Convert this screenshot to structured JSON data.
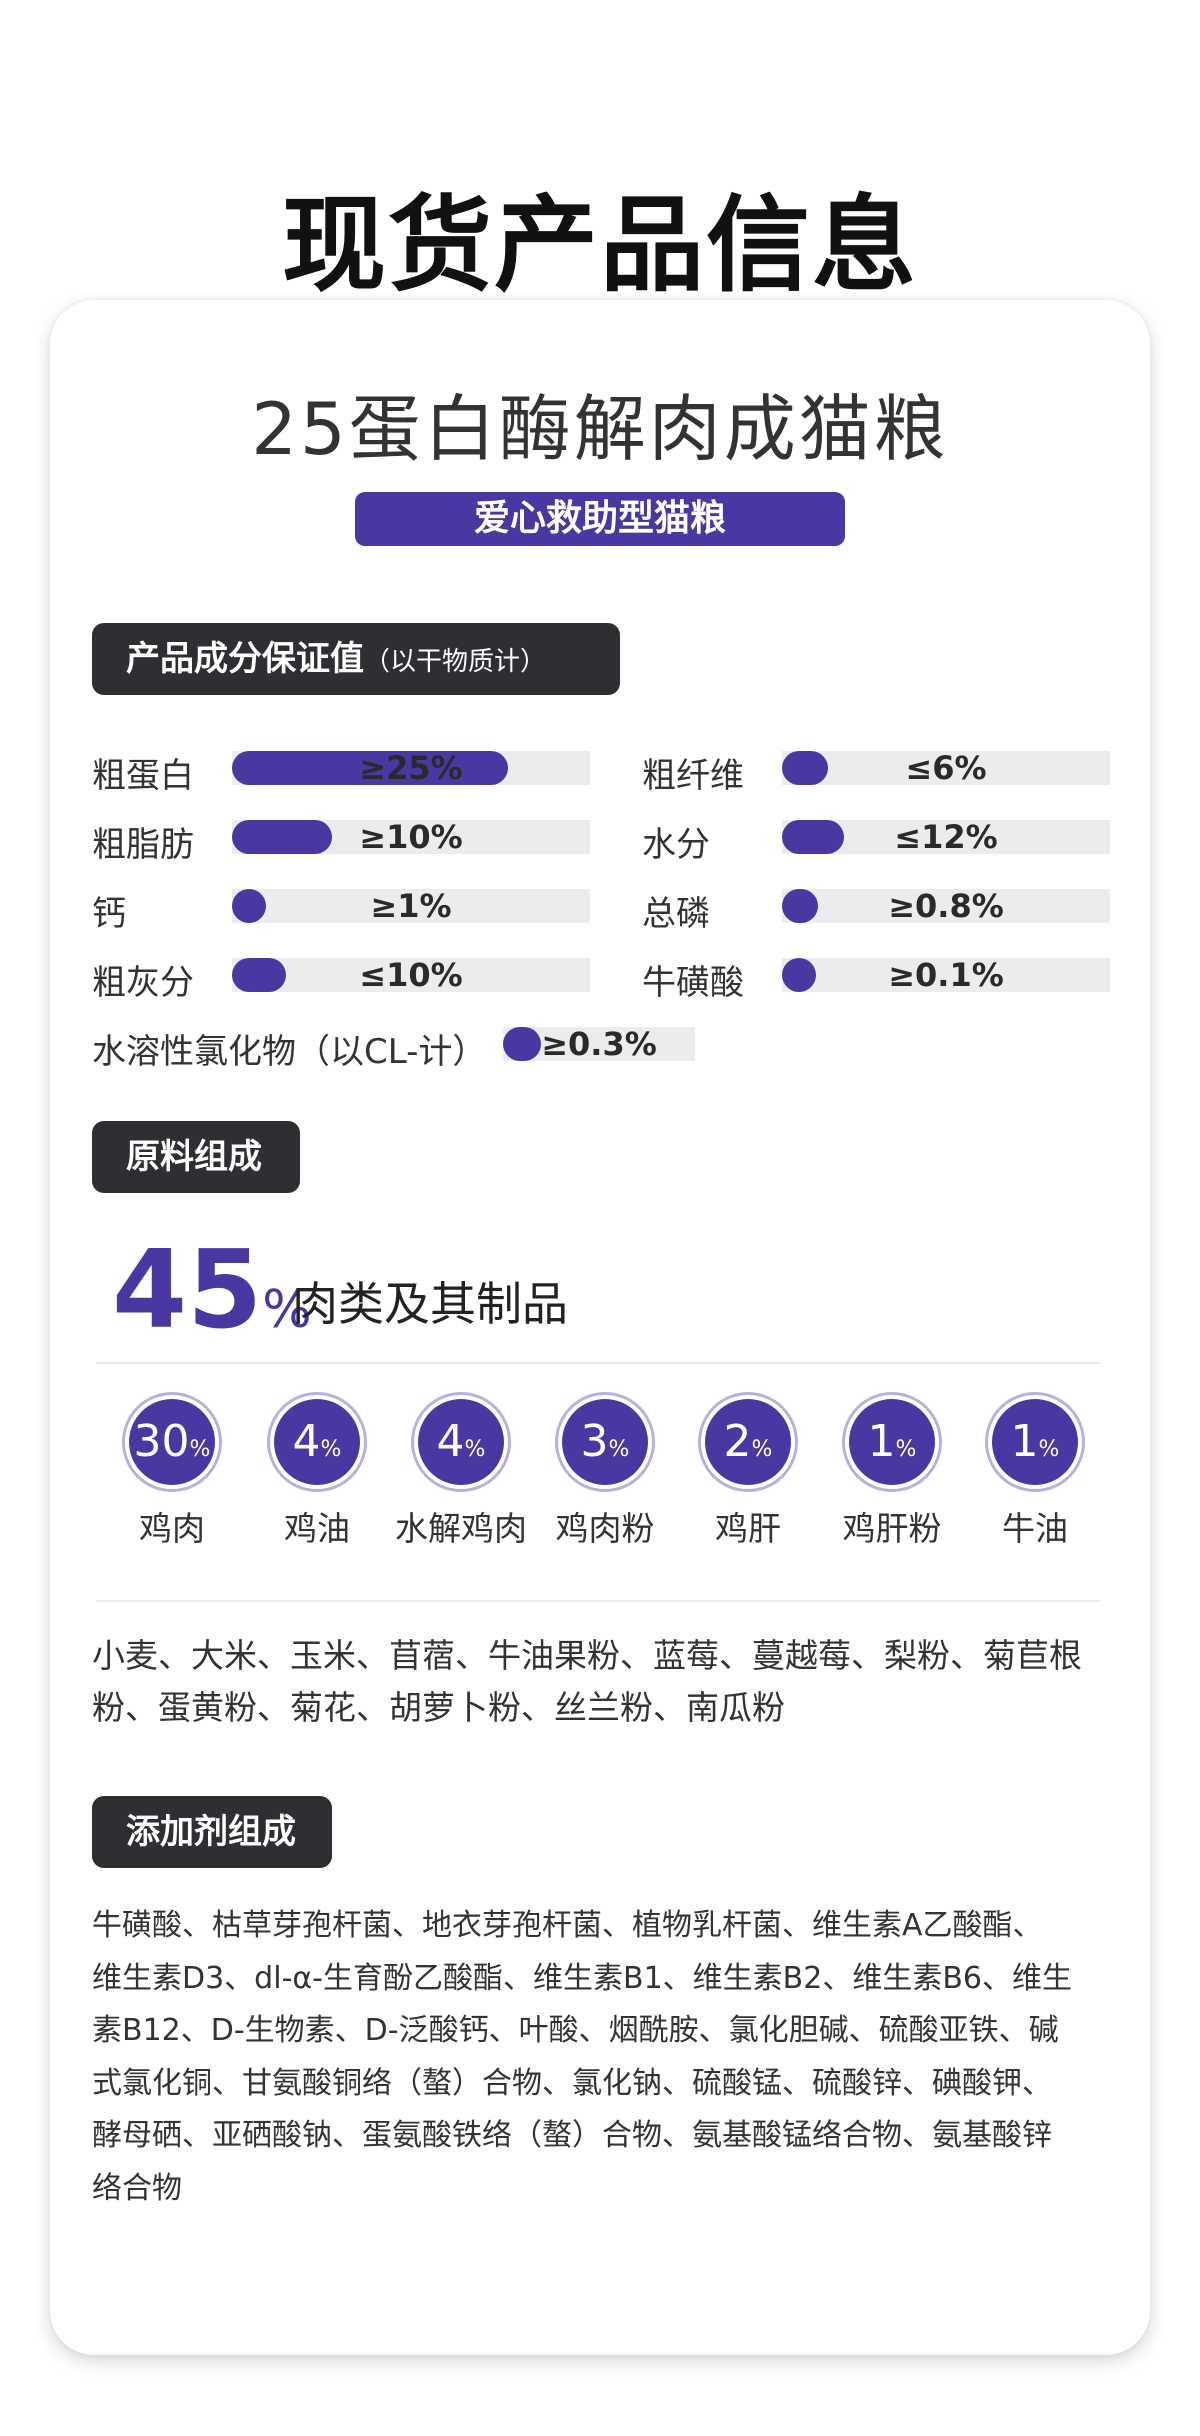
{
  "page_title": "现货产品信息",
  "product": {
    "name": "25蛋白酶解肉成猫粮",
    "tag": "爱心救助型猫粮"
  },
  "guarantee": {
    "header": "产品成分保证值",
    "header_sub": "（以干物质计）",
    "items": [
      {
        "label": "粗蛋白",
        "value": "≥25%",
        "fill_ratio": 0.77
      },
      {
        "label": "粗纤维",
        "value": "≤6%",
        "fill_ratio": 0.14
      },
      {
        "label": "粗脂肪",
        "value": "≥10%",
        "fill_ratio": 0.28
      },
      {
        "label": "水分",
        "value": "≤12%",
        "fill_ratio": 0.19
      },
      {
        "label": "钙",
        "value": "≥1%",
        "fill_ratio": 0.07
      },
      {
        "label": "总磷",
        "value": "≥0.8%",
        "fill_ratio": 0.11
      },
      {
        "label": "粗灰分",
        "value": "≤10%",
        "fill_ratio": 0.15
      },
      {
        "label": "牛磺酸",
        "value": "≥0.1%",
        "fill_ratio": 0.06
      },
      {
        "label": "水溶性氯化物（以CL-计）",
        "value": "≥0.3%",
        "fill_ratio": 0.2
      }
    ]
  },
  "ingredients": {
    "header": "原料组成",
    "meat_percent": "45",
    "percent_symbol": "%",
    "meat_label": "肉类及其制品",
    "breakdown": [
      {
        "num": "30",
        "label": "鸡肉"
      },
      {
        "num": "4",
        "label": "鸡油"
      },
      {
        "num": "4",
        "label": "水解鸡肉"
      },
      {
        "num": "3",
        "label": "鸡肉粉"
      },
      {
        "num": "2",
        "label": "鸡肝"
      },
      {
        "num": "1",
        "label": "鸡肝粉"
      },
      {
        "num": "1",
        "label": "牛油"
      }
    ],
    "other_line1": "小麦、大米、玉米、苜蓿、牛油果粉、蓝莓、蔓越莓、梨粉、菊苣根",
    "other_line2": "粉、蛋黄粉、菊花、胡萝卜粉、丝兰粉、南瓜粉"
  },
  "additives": {
    "header": "添加剂组成",
    "lines": [
      "牛磺酸、枯草芽孢杆菌、地衣芽孢杆菌、植物乳杆菌、维生素A乙酸酯、",
      "维生素D3、dl-α-生育酚乙酸酯、维生素B1、维生素B2、维生素B6、维生",
      "素B12、D-生物素、D-泛酸钙、叶酸、烟酰胺、氯化胆碱、硫酸亚铁、碱",
      "式氯化铜、甘氨酸铜络（螯）合物、氯化钠、硫酸锰、硫酸锌、碘酸钾、",
      "酵母硒、亚硒酸钠、蛋氨酸铁络（螯）合物、氨基酸锰络合物、氨基酸锌",
      "络合物"
    ]
  },
  "colors": {
    "accent": "#4a38a2",
    "header_bg": "#2f2f33",
    "track": "#ececee"
  }
}
